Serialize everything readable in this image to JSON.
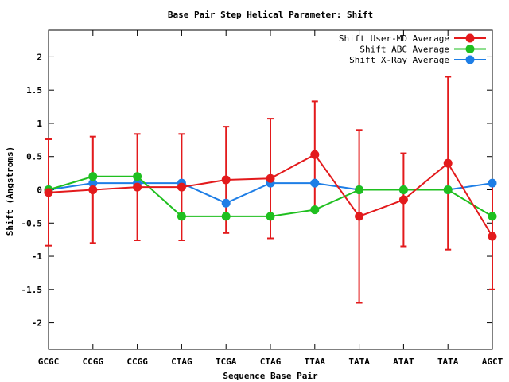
{
  "chart_data": {
    "type": "line",
    "title": "Base Pair Step Helical Parameter: Shift",
    "xlabel": "Sequence Base Pair",
    "ylabel": "Shift (Angstroms)",
    "categories": [
      "GCGC",
      "CCGG",
      "CCGG",
      "CTAG",
      "TCGA",
      "CTAG",
      "TTAA",
      "TATA",
      "ATAT",
      "TATA",
      "AGCT"
    ],
    "ylim": [
      -2.4,
      2.4
    ],
    "yticks": [
      -2,
      -1.5,
      -1,
      -0.5,
      0,
      0.5,
      1,
      1.5,
      2
    ],
    "ytick_labels": [
      "-2",
      "-1.5",
      "-1",
      "-0.5",
      "0",
      "0.5",
      "1",
      "1.5",
      "2"
    ],
    "legend_position": "top-right",
    "grid": false,
    "series": [
      {
        "name": "Shift User-MD Average",
        "color": "#e31a1c",
        "values": [
          -0.04,
          0.0,
          0.04,
          0.04,
          0.15,
          0.17,
          0.53,
          -0.4,
          -0.15,
          0.4,
          -0.7
        ],
        "error": [
          0.8,
          0.8,
          0.8,
          0.8,
          0.8,
          0.9,
          0.8,
          1.3,
          0.7,
          1.3,
          0.8
        ]
      },
      {
        "name": "Shift ABC Average",
        "color": "#1fbf1f",
        "values": [
          0.0,
          0.2,
          0.2,
          -0.4,
          -0.4,
          -0.4,
          -0.3,
          0.0,
          0.0,
          0.0,
          -0.4
        ]
      },
      {
        "name": "Shift X-Ray Average",
        "color": "#1e7ee6",
        "values": [
          0.0,
          0.1,
          0.1,
          0.1,
          -0.2,
          0.1,
          0.1,
          0.0,
          0.0,
          0.0,
          0.1
        ]
      }
    ]
  }
}
